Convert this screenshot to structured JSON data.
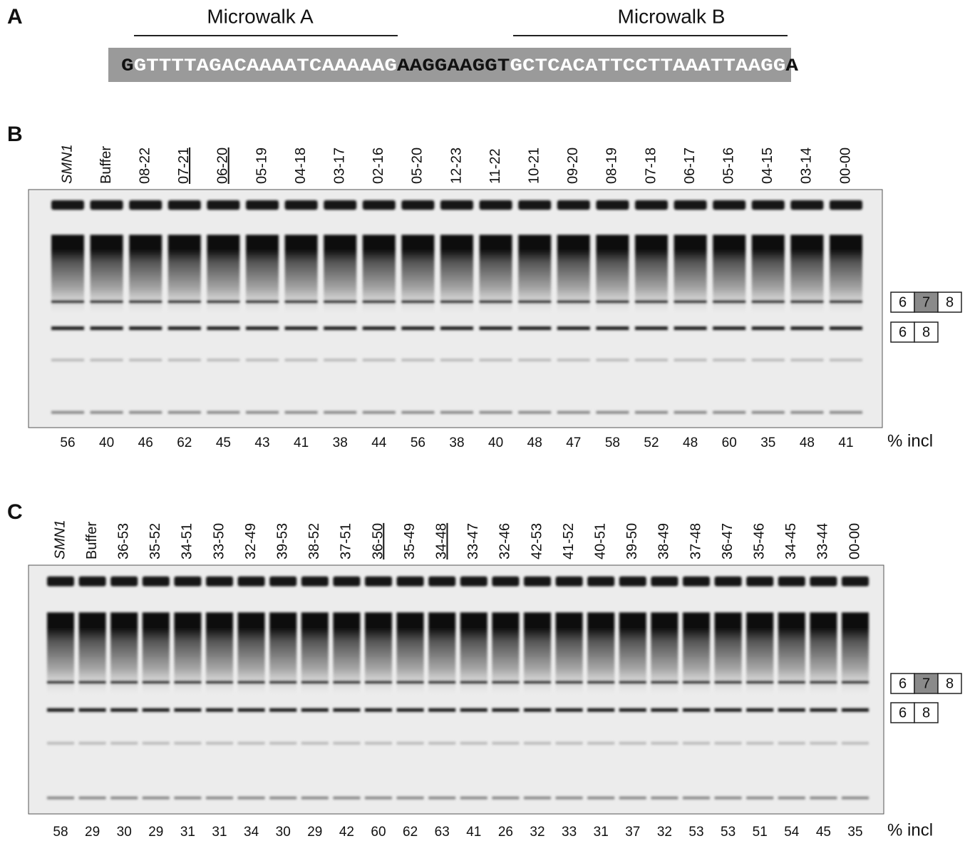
{
  "panel_a": {
    "label": "A",
    "microwalk_a": "Microwalk A",
    "microwalk_b": "Microwalk B",
    "sequence": [
      {
        "text": "G",
        "shade": "dark"
      },
      {
        "text": "GTTTTAGACAAAATCAAAAAG",
        "shade": "light"
      },
      {
        "text": "AAGGAAGGT",
        "shade": "dark"
      },
      {
        "text": "GCTCACATTCCTTAAATTAAGG",
        "shade": "light"
      },
      {
        "text": "A",
        "shade": "dark"
      }
    ]
  },
  "panel_b": {
    "label": "B",
    "lanes": [
      {
        "label": "SMN1",
        "italic": true
      },
      {
        "label": "Buffer"
      },
      {
        "label": "08-22"
      },
      {
        "label": "07-21",
        "underline": true
      },
      {
        "label": "06-20",
        "underline": true
      },
      {
        "label": "05-19"
      },
      {
        "label": "04-18"
      },
      {
        "label": "03-17"
      },
      {
        "label": "02-16"
      },
      {
        "label": "05-20"
      },
      {
        "label": "12-23"
      },
      {
        "label": "11-22"
      },
      {
        "label": "10-21"
      },
      {
        "label": "09-20"
      },
      {
        "label": "08-19"
      },
      {
        "label": "07-18"
      },
      {
        "label": "06-17"
      },
      {
        "label": "05-16"
      },
      {
        "label": "04-15"
      },
      {
        "label": "03-14"
      },
      {
        "label": "00-00"
      }
    ],
    "inclusion": [
      56,
      40,
      46,
      62,
      45,
      43,
      41,
      38,
      44,
      56,
      38,
      40,
      48,
      47,
      58,
      52,
      48,
      60,
      35,
      48,
      41
    ],
    "inclusion_label": "% incl",
    "included_product": [
      "6",
      "7",
      "8"
    ],
    "skipped_product": [
      "6",
      "8"
    ]
  },
  "panel_c": {
    "label": "C",
    "lanes": [
      {
        "label": "SMN1",
        "italic": true
      },
      {
        "label": "Buffer"
      },
      {
        "label": "36-53"
      },
      {
        "label": "35-52"
      },
      {
        "label": "34-51"
      },
      {
        "label": "33-50"
      },
      {
        "label": "32-49"
      },
      {
        "label": "39-53"
      },
      {
        "label": "38-52"
      },
      {
        "label": "37-51"
      },
      {
        "label": "36-50",
        "underline": true
      },
      {
        "label": "35-49"
      },
      {
        "label": "34-48",
        "underline": true
      },
      {
        "label": "33-47"
      },
      {
        "label": "32-46"
      },
      {
        "label": "42-53"
      },
      {
        "label": "41-52"
      },
      {
        "label": "40-51"
      },
      {
        "label": "39-50"
      },
      {
        "label": "38-49"
      },
      {
        "label": "37-48"
      },
      {
        "label": "36-47"
      },
      {
        "label": "35-46"
      },
      {
        "label": "34-45"
      },
      {
        "label": "33-44"
      },
      {
        "label": "00-00"
      }
    ],
    "inclusion": [
      58,
      29,
      30,
      29,
      31,
      31,
      34,
      30,
      29,
      42,
      60,
      62,
      63,
      41,
      26,
      32,
      33,
      31,
      37,
      32,
      53,
      53,
      51,
      54,
      45,
      35
    ],
    "inclusion_label": "% incl",
    "included_product": [
      "6",
      "7",
      "8"
    ],
    "skipped_product": [
      "6",
      "8"
    ]
  }
}
